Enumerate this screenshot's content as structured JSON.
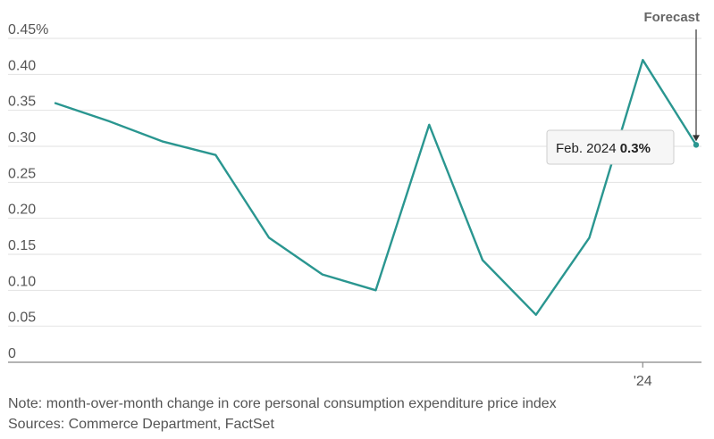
{
  "chart_data": {
    "type": "line",
    "title": "",
    "xlabel": "",
    "ylabel": "",
    "ylim": [
      0,
      0.45
    ],
    "y_ticks": [
      {
        "value": 0.45,
        "label": "0.45%"
      },
      {
        "value": 0.4,
        "label": "0.40"
      },
      {
        "value": 0.35,
        "label": "0.35"
      },
      {
        "value": 0.3,
        "label": "0.30"
      },
      {
        "value": 0.25,
        "label": "0.25"
      },
      {
        "value": 0.2,
        "label": "0.20"
      },
      {
        "value": 0.15,
        "label": "0.15"
      },
      {
        "value": 0.1,
        "label": "0.10"
      },
      {
        "value": 0.05,
        "label": "0.05"
      },
      {
        "value": 0,
        "label": "0"
      }
    ],
    "x_tick": {
      "index": 11,
      "label": "'24"
    },
    "series": [
      {
        "name": "Core PCE month-over-month change",
        "color": "#2a9690",
        "values": [
          0.36,
          0.335,
          0.307,
          0.288,
          0.173,
          0.122,
          0.1,
          0.33,
          0.142,
          0.066,
          0.173,
          0.42,
          0.302
        ]
      }
    ],
    "annotations": {
      "forecast_label": "Forecast",
      "callout_label": "Feb. 2024",
      "callout_value": "0.3%"
    }
  },
  "footer": {
    "note": "Note: month-over-month change in core personal consumption expenditure price index",
    "sources": "Sources: Commerce Department, FactSet"
  }
}
